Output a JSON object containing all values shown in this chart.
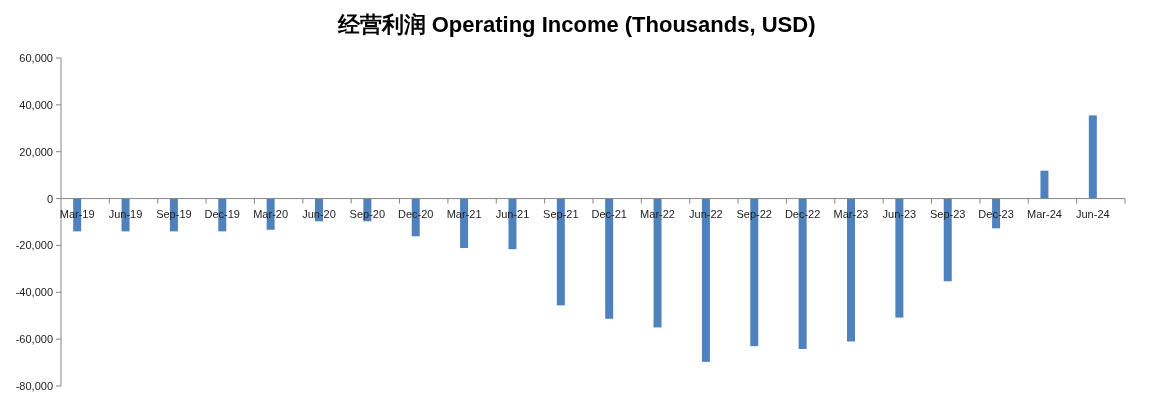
{
  "chart_data": {
    "type": "bar",
    "title": "经营利润 Operating Income (Thousands, USD)",
    "categories": [
      "Mar-19",
      "Jun-19",
      "Sep-19",
      "Dec-19",
      "Mar-20",
      "Jun-20",
      "Sep-20",
      "Dec-20",
      "Mar-21",
      "Jun-21",
      "Sep-21",
      "Dec-21",
      "Mar-22",
      "Jun-22",
      "Sep-22",
      "Dec-22",
      "Mar-23",
      "Jun-23",
      "Sep-23",
      "Dec-23",
      "Mar-24",
      "Jun-24"
    ],
    "values": [
      -14000,
      -14000,
      -14000,
      -14000,
      -13300,
      -9700,
      -9700,
      -16100,
      -21100,
      -21600,
      -45600,
      -51300,
      -55000,
      -69700,
      -63000,
      -64200,
      -61000,
      -50800,
      -35300,
      -12700,
      11900,
      35500
    ],
    "color": "#4f81bd",
    "ylim": [
      -80000,
      60000
    ],
    "yticks": [
      {
        "value": -80000,
        "label": "-80,000"
      },
      {
        "value": -60000,
        "label": "-60,000"
      },
      {
        "value": -40000,
        "label": "-40,000"
      },
      {
        "value": -20000,
        "label": "-20,000"
      },
      0,
      {
        "value": 20000,
        "label": "20,000"
      },
      {
        "value": 40000,
        "label": "40,000"
      },
      {
        "value": 60000,
        "label": "60,000"
      }
    ],
    "grid": false
  }
}
